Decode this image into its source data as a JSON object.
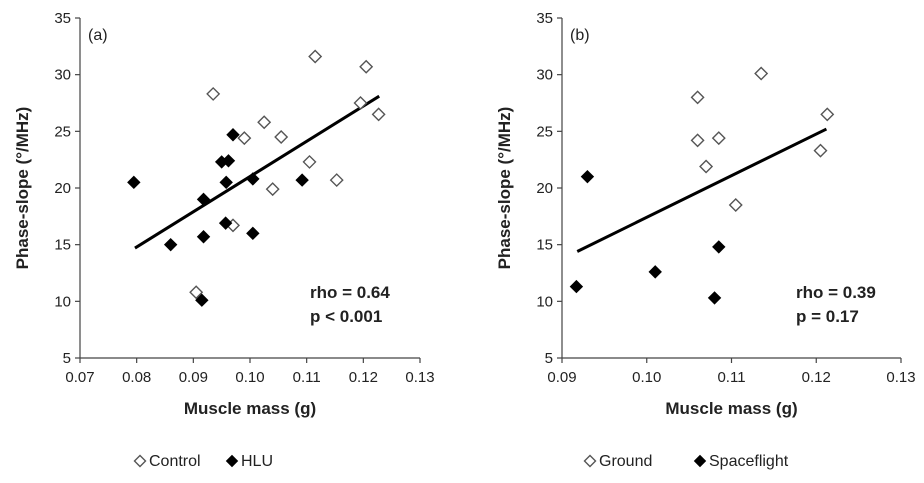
{
  "chart_data": [
    {
      "type": "scatter",
      "panel_label": "(a)",
      "xlabel": "Muscle mass (g)",
      "ylabel": "Phase-slope (°/MHz)",
      "xlim": [
        0.07,
        0.13
      ],
      "ylim": [
        5,
        35
      ],
      "xticks": [
        "0.07",
        "0.08",
        "0.09",
        "0.10",
        "0.11",
        "0.12",
        "0.13"
      ],
      "yticks": [
        "5",
        "10",
        "15",
        "20",
        "25",
        "30",
        "35"
      ],
      "grid": false,
      "annotations": [
        "rho = 0.64",
        "p < 0.001"
      ],
      "series": [
        {
          "name": "Control",
          "marker": "diamond-open",
          "points": [
            [
              0.0935,
              28.3
            ],
            [
              0.099,
              24.4
            ],
            [
              0.1025,
              25.8
            ],
            [
              0.1055,
              24.5
            ],
            [
              0.1115,
              31.6
            ],
            [
              0.1205,
              30.7
            ],
            [
              0.1195,
              27.5
            ],
            [
              0.1227,
              26.5
            ],
            [
              0.1105,
              22.3
            ],
            [
              0.1153,
              20.7
            ],
            [
              0.104,
              19.9
            ],
            [
              0.097,
              16.7
            ],
            [
              0.0905,
              10.8
            ]
          ]
        },
        {
          "name": "HLU",
          "marker": "diamond-filled",
          "points": [
            [
              0.0795,
              20.5
            ],
            [
              0.086,
              15.0
            ],
            [
              0.0915,
              10.1
            ],
            [
              0.0918,
              15.7
            ],
            [
              0.0918,
              19.0
            ],
            [
              0.095,
              22.3
            ],
            [
              0.0962,
              22.4
            ],
            [
              0.097,
              24.7
            ],
            [
              0.0958,
              20.5
            ],
            [
              0.0957,
              16.9
            ],
            [
              0.1005,
              20.8
            ],
            [
              0.1005,
              16.0
            ],
            [
              0.1092,
              20.7
            ]
          ]
        }
      ],
      "trendline": {
        "x": [
          0.0797,
          0.1228
        ],
        "y": [
          14.7,
          28.1
        ]
      },
      "legend": {
        "placement": "bottom",
        "entries": [
          "Control",
          "HLU"
        ]
      }
    },
    {
      "type": "scatter",
      "panel_label": "(b)",
      "xlabel": "Muscle mass (g)",
      "ylabel": "Phase-slope (°/MHz)",
      "xlim": [
        0.09,
        0.13
      ],
      "ylim": [
        5,
        35
      ],
      "xticks": [
        "0.09",
        "0.10",
        "0.11",
        "0.12",
        "0.13"
      ],
      "yticks": [
        "5",
        "10",
        "15",
        "20",
        "25",
        "30",
        "35"
      ],
      "grid": false,
      "annotations": [
        "rho = 0.39",
        "p = 0.17"
      ],
      "series": [
        {
          "name": "Ground",
          "marker": "diamond-open",
          "points": [
            [
              0.106,
              28.0
            ],
            [
              0.106,
              24.2
            ],
            [
              0.1085,
              24.4
            ],
            [
              0.107,
              21.9
            ],
            [
              0.1105,
              18.5
            ],
            [
              0.1135,
              30.1
            ],
            [
              0.1205,
              23.3
            ],
            [
              0.1213,
              26.5
            ]
          ]
        },
        {
          "name": "Spaceflight",
          "marker": "diamond-filled",
          "points": [
            [
              0.0917,
              11.3
            ],
            [
              0.093,
              21.0
            ],
            [
              0.101,
              12.6
            ],
            [
              0.1085,
              14.8
            ],
            [
              0.108,
              10.3
            ]
          ]
        }
      ],
      "trendline": {
        "x": [
          0.0918,
          0.1212
        ],
        "y": [
          14.4,
          25.2
        ]
      },
      "legend": {
        "placement": "bottom",
        "entries": [
          "Ground",
          "Spaceflight"
        ]
      }
    }
  ]
}
